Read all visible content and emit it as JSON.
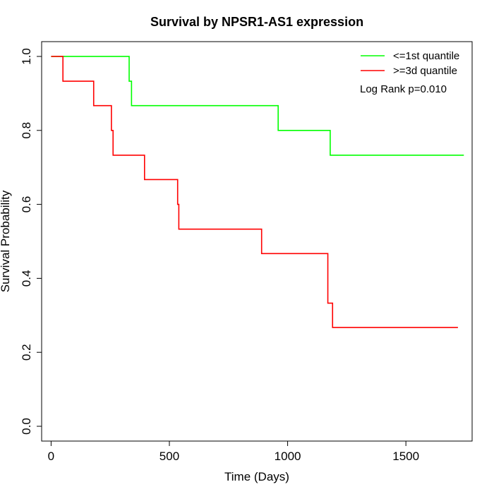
{
  "chart_data": {
    "type": "line",
    "title": "Survival by NPSR1-AS1 expression",
    "xlabel": "Time (Days)",
    "ylabel": "Survival Probability",
    "xlim": [
      -40,
      1780
    ],
    "ylim": [
      -0.04,
      1.04
    ],
    "x_ticks": [
      0,
      500,
      1000,
      1500
    ],
    "y_ticks": [
      0.0,
      0.2,
      0.4,
      0.6,
      0.8,
      1.0
    ],
    "x_tick_labels": [
      "0",
      "500",
      "1000",
      "1500"
    ],
    "y_tick_labels": [
      "0.0",
      "0.2",
      "0.4",
      "0.6",
      "0.8",
      "1.0"
    ],
    "grid": false,
    "legend_position": "top-right",
    "annotation": "Log Rank p=0.010",
    "series": [
      {
        "name": "<=1st quantile",
        "color": "#00ff00",
        "step": true,
        "x": [
          0,
          330,
          340,
          960,
          1180,
          1745
        ],
        "y": [
          1.0,
          0.933,
          0.867,
          0.8,
          0.733,
          0.733
        ]
      },
      {
        "name": ">=3d quantile",
        "color": "#ff0000",
        "step": true,
        "x": [
          0,
          50,
          180,
          255,
          262,
          395,
          535,
          540,
          890,
          1170,
          1190,
          1720
        ],
        "y": [
          1.0,
          0.933,
          0.867,
          0.8,
          0.733,
          0.667,
          0.6,
          0.533,
          0.467,
          0.333,
          0.267,
          0.267
        ]
      }
    ]
  }
}
